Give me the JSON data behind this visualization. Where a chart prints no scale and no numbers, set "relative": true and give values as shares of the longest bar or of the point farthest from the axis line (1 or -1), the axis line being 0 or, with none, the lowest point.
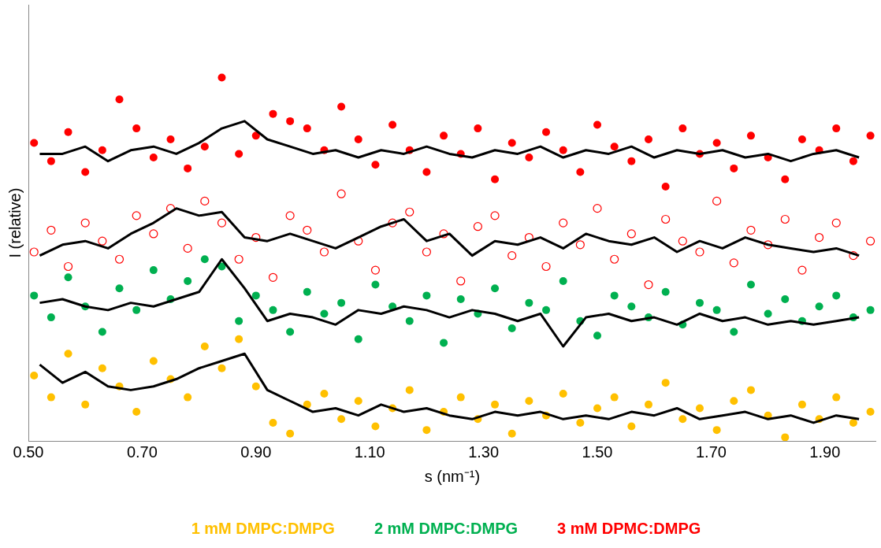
{
  "chart_data": {
    "type": "scatter",
    "xlabel": "s (nm⁻¹)",
    "ylabel": "I (relative)",
    "relative": true,
    "marker": "circle",
    "legend": "bottom",
    "grid": false,
    "xlim": [
      0.5,
      1.99
    ],
    "xticks": [
      {
        "value": 0.5,
        "label": "0.50"
      },
      {
        "value": 0.7,
        "label": "0.70"
      },
      {
        "value": 0.9,
        "label": "0.90"
      },
      {
        "value": 1.1,
        "label": "1.10"
      },
      {
        "value": 1.3,
        "label": "1.30"
      },
      {
        "value": 1.5,
        "label": "1.50"
      },
      {
        "value": 1.7,
        "label": "1.70"
      },
      {
        "value": 1.9,
        "label": "1.90"
      }
    ],
    "x": [
      0.51,
      0.54,
      0.57,
      0.6,
      0.63,
      0.66,
      0.69,
      0.72,
      0.75,
      0.78,
      0.81,
      0.84,
      0.87,
      0.9,
      0.93,
      0.96,
      0.99,
      1.02,
      1.05,
      1.08,
      1.11,
      1.14,
      1.17,
      1.2,
      1.23,
      1.26,
      1.29,
      1.32,
      1.35,
      1.38,
      1.41,
      1.44,
      1.47,
      1.5,
      1.53,
      1.56,
      1.59,
      1.62,
      1.65,
      1.68,
      1.71,
      1.74,
      1.77,
      1.8,
      1.83,
      1.86,
      1.89,
      1.92,
      1.95,
      1.98
    ],
    "series": [
      {
        "name": "1 mM DMPC:DMPG",
        "color": "#ffc000",
        "values": [
          0.18,
          0.12,
          0.24,
          0.1,
          0.2,
          0.15,
          0.08,
          0.22,
          0.17,
          0.12,
          0.26,
          0.2,
          0.28,
          0.15,
          0.05,
          0.02,
          0.1,
          0.13,
          0.06,
          0.11,
          0.04,
          0.09,
          0.14,
          0.03,
          0.08,
          0.12,
          0.06,
          0.1,
          0.02,
          0.11,
          0.07,
          0.13,
          0.05,
          0.09,
          0.12,
          0.04,
          0.1,
          0.16,
          0.06,
          0.09,
          0.03,
          0.11,
          0.14,
          0.07,
          0.01,
          0.1,
          0.06,
          0.12,
          0.05,
          0.08
        ]
      },
      {
        "name": "2 mM DMPC:DMPG",
        "color": "#00b050",
        "values": [
          0.4,
          0.34,
          0.45,
          0.37,
          0.3,
          0.42,
          0.36,
          0.47,
          0.39,
          0.44,
          0.5,
          0.48,
          0.33,
          0.4,
          0.36,
          0.3,
          0.41,
          0.35,
          0.38,
          0.28,
          0.43,
          0.37,
          0.33,
          0.4,
          0.27,
          0.39,
          0.35,
          0.42,
          0.31,
          0.38,
          0.36,
          0.44,
          0.33,
          0.29,
          0.4,
          0.37,
          0.34,
          0.41,
          0.32,
          0.38,
          0.36,
          0.3,
          0.43,
          0.35,
          0.39,
          0.33,
          0.37,
          0.4,
          0.34,
          0.36
        ]
      },
      {
        "color": "#ff0000",
        "values": [
          0.52,
          0.58,
          0.48,
          0.6,
          0.55,
          0.5,
          0.62,
          0.57,
          0.64,
          0.53,
          0.66,
          0.6,
          0.5,
          0.56,
          0.45,
          0.62,
          0.58,
          0.52,
          0.68,
          0.55,
          0.47,
          0.6,
          0.63,
          0.52,
          0.57,
          0.44,
          0.59,
          0.62,
          0.51,
          0.56,
          0.48,
          0.6,
          0.54,
          0.64,
          0.5,
          0.57,
          0.43,
          0.61,
          0.55,
          0.52,
          0.66,
          0.49,
          0.58,
          0.54,
          0.61,
          0.47,
          0.56,
          0.6,
          0.51,
          0.55
        ]
      },
      {
        "name": "3 mM DPMC:DMPG",
        "color": "#ff0000",
        "values": [
          0.82,
          0.77,
          0.85,
          0.74,
          0.8,
          0.94,
          0.86,
          0.78,
          0.83,
          0.75,
          0.81,
          1.0,
          0.79,
          0.84,
          0.9,
          0.88,
          0.86,
          0.8,
          0.92,
          0.83,
          0.76,
          0.87,
          0.8,
          0.74,
          0.84,
          0.79,
          0.86,
          0.72,
          0.82,
          0.78,
          0.85,
          0.8,
          0.74,
          0.87,
          0.81,
          0.77,
          0.83,
          0.7,
          0.86,
          0.79,
          0.82,
          0.75,
          0.84,
          0.78,
          0.72,
          0.83,
          0.8,
          0.86,
          0.77,
          0.84
        ]
      },
      {
        "type": "line",
        "marker": "none",
        "color": "#000000",
        "x": [
          0.52,
          0.56,
          0.6,
          0.64,
          0.68,
          0.72,
          0.76,
          0.8,
          0.84,
          0.88,
          0.92,
          0.96,
          1.0,
          1.04,
          1.08,
          1.12,
          1.16,
          1.2,
          1.24,
          1.28,
          1.32,
          1.36,
          1.4,
          1.44,
          1.48,
          1.52,
          1.56,
          1.6,
          1.64,
          1.68,
          1.72,
          1.76,
          1.8,
          1.84,
          1.88,
          1.92,
          1.96
        ],
        "values": [
          0.21,
          0.16,
          0.19,
          0.15,
          0.14,
          0.15,
          0.17,
          0.2,
          0.22,
          0.24,
          0.14,
          0.11,
          0.08,
          0.09,
          0.07,
          0.1,
          0.08,
          0.09,
          0.07,
          0.06,
          0.08,
          0.07,
          0.08,
          0.06,
          0.07,
          0.06,
          0.08,
          0.07,
          0.09,
          0.06,
          0.07,
          0.08,
          0.06,
          0.07,
          0.05,
          0.07,
          0.06
        ]
      },
      {
        "type": "line",
        "marker": "none",
        "color": "#000000",
        "x": [
          0.52,
          0.56,
          0.6,
          0.64,
          0.68,
          0.72,
          0.76,
          0.8,
          0.84,
          0.88,
          0.92,
          0.96,
          1.0,
          1.04,
          1.08,
          1.12,
          1.16,
          1.2,
          1.24,
          1.28,
          1.32,
          1.36,
          1.4,
          1.44,
          1.48,
          1.52,
          1.56,
          1.6,
          1.64,
          1.68,
          1.72,
          1.76,
          1.8,
          1.84,
          1.88,
          1.92,
          1.96
        ],
        "values": [
          0.38,
          0.39,
          0.37,
          0.36,
          0.38,
          0.37,
          0.39,
          0.41,
          0.5,
          0.42,
          0.33,
          0.35,
          0.34,
          0.32,
          0.36,
          0.35,
          0.37,
          0.36,
          0.34,
          0.36,
          0.35,
          0.33,
          0.35,
          0.26,
          0.34,
          0.35,
          0.33,
          0.34,
          0.32,
          0.35,
          0.33,
          0.34,
          0.32,
          0.33,
          0.32,
          0.33,
          0.34
        ]
      },
      {
        "type": "line",
        "marker": "none",
        "color": "#000000",
        "x": [
          0.52,
          0.56,
          0.6,
          0.64,
          0.68,
          0.72,
          0.76,
          0.8,
          0.84,
          0.88,
          0.92,
          0.96,
          1.0,
          1.04,
          1.08,
          1.12,
          1.16,
          1.2,
          1.24,
          1.28,
          1.32,
          1.36,
          1.4,
          1.44,
          1.48,
          1.52,
          1.56,
          1.6,
          1.64,
          1.68,
          1.72,
          1.76,
          1.8,
          1.84,
          1.88,
          1.92,
          1.96
        ],
        "values": [
          0.51,
          0.54,
          0.55,
          0.53,
          0.57,
          0.6,
          0.64,
          0.62,
          0.63,
          0.56,
          0.55,
          0.57,
          0.55,
          0.53,
          0.56,
          0.59,
          0.61,
          0.55,
          0.57,
          0.51,
          0.55,
          0.54,
          0.56,
          0.53,
          0.57,
          0.55,
          0.54,
          0.56,
          0.52,
          0.55,
          0.53,
          0.56,
          0.54,
          0.53,
          0.52,
          0.53,
          0.51
        ]
      },
      {
        "type": "line",
        "marker": "none",
        "color": "#000000",
        "x": [
          0.52,
          0.56,
          0.6,
          0.64,
          0.68,
          0.72,
          0.76,
          0.8,
          0.84,
          0.88,
          0.92,
          0.96,
          1.0,
          1.04,
          1.08,
          1.12,
          1.16,
          1.2,
          1.24,
          1.28,
          1.32,
          1.36,
          1.4,
          1.44,
          1.48,
          1.52,
          1.56,
          1.6,
          1.64,
          1.68,
          1.72,
          1.76,
          1.8,
          1.84,
          1.88,
          1.92,
          1.96
        ],
        "values": [
          0.79,
          0.79,
          0.81,
          0.77,
          0.8,
          0.81,
          0.79,
          0.82,
          0.86,
          0.88,
          0.83,
          0.81,
          0.79,
          0.8,
          0.78,
          0.8,
          0.79,
          0.81,
          0.79,
          0.78,
          0.8,
          0.79,
          0.81,
          0.78,
          0.8,
          0.79,
          0.81,
          0.78,
          0.8,
          0.79,
          0.8,
          0.78,
          0.79,
          0.77,
          0.79,
          0.8,
          0.78
        ]
      }
    ]
  }
}
